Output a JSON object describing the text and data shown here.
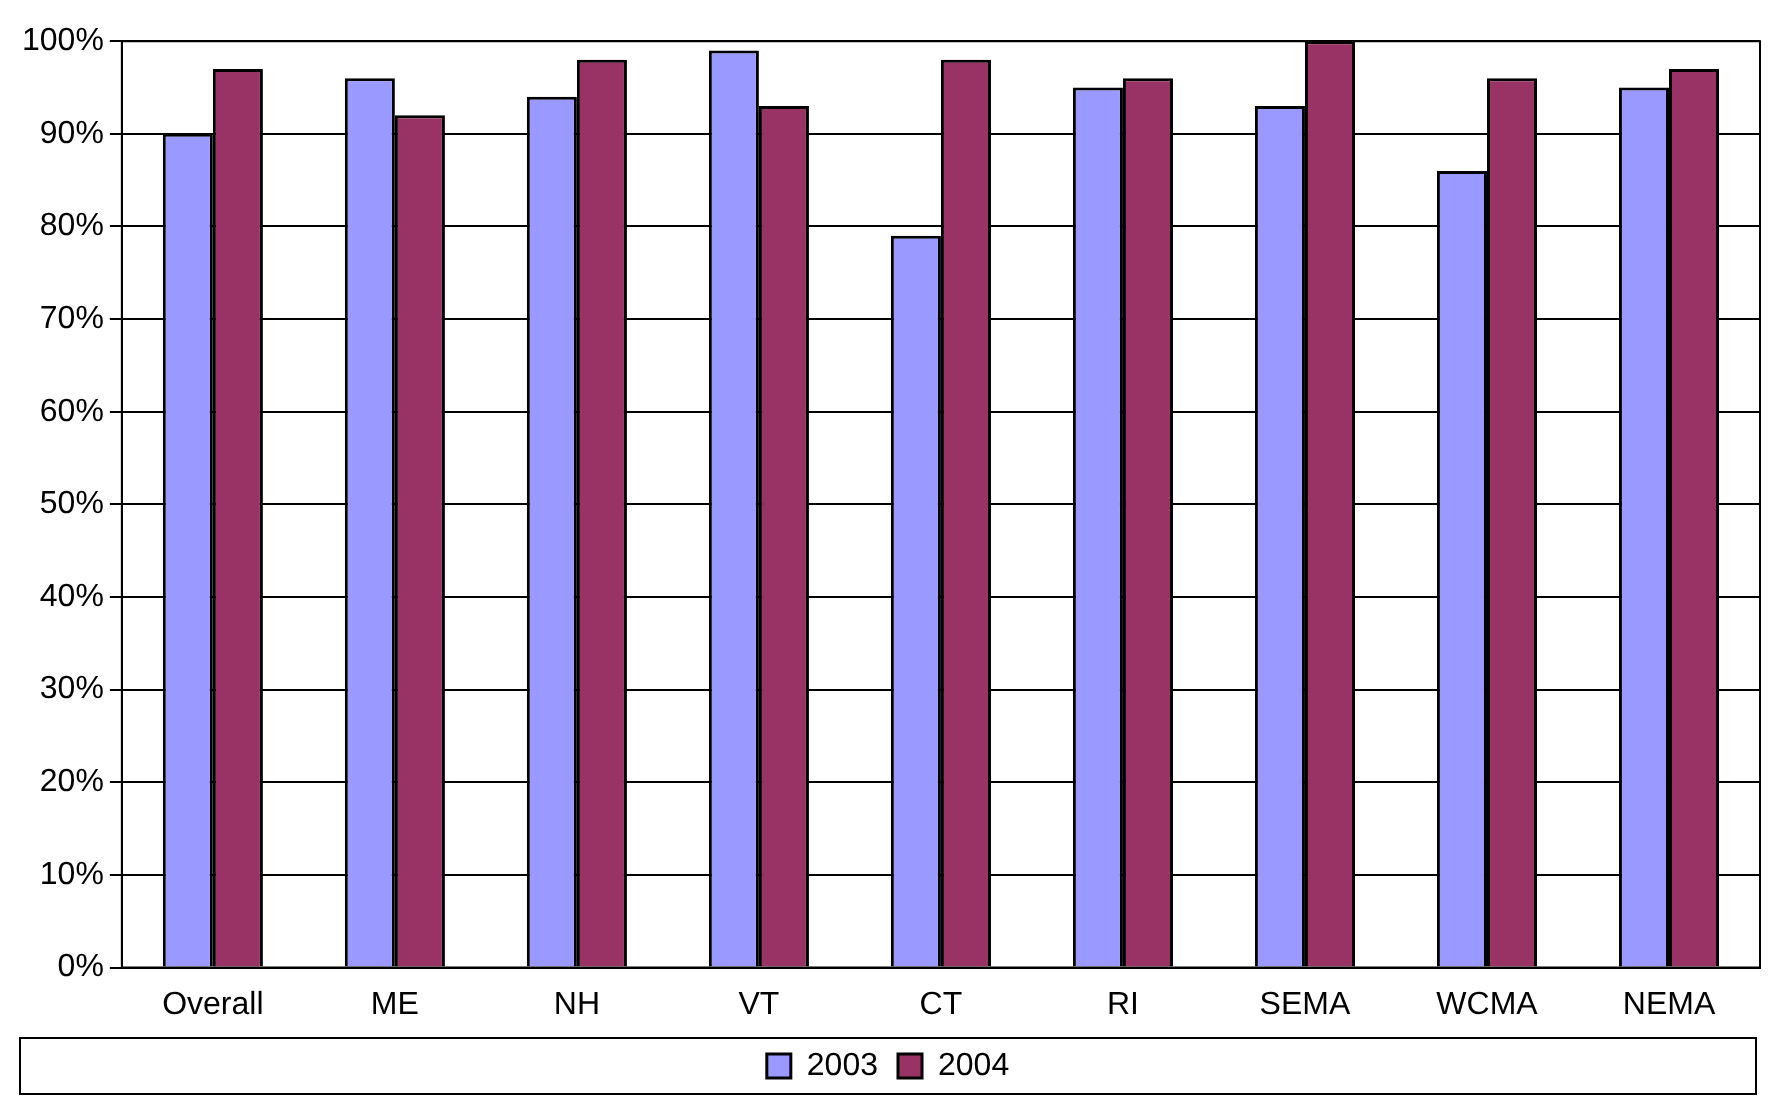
{
  "chart_data": {
    "type": "bar",
    "categories": [
      "Overall",
      "ME",
      "NH",
      "VT",
      "CT",
      "RI",
      "SEMA",
      "WCMA",
      "NEMA"
    ],
    "series": [
      {
        "name": "2003",
        "color": "#9999ff",
        "values": [
          90,
          96,
          94,
          99,
          79,
          95,
          93,
          86,
          95
        ]
      },
      {
        "name": "2004",
        "color": "#993366",
        "values": [
          97,
          92,
          98,
          93,
          98,
          96,
          100,
          96,
          97
        ]
      }
    ],
    "ylim": [
      0,
      100
    ],
    "yticks": [
      {
        "value": 0,
        "label": "0%"
      },
      {
        "value": 10,
        "label": "10%"
      },
      {
        "value": 20,
        "label": "20%"
      },
      {
        "value": 30,
        "label": "30%"
      },
      {
        "value": 40,
        "label": "40%"
      },
      {
        "value": 50,
        "label": "50%"
      },
      {
        "value": 60,
        "label": "60%"
      },
      {
        "value": 70,
        "label": "70%"
      },
      {
        "value": 80,
        "label": "80%"
      },
      {
        "value": 90,
        "label": "90%"
      },
      {
        "value": 100,
        "label": "100%"
      }
    ],
    "grid": "y",
    "legend": "bottom"
  }
}
